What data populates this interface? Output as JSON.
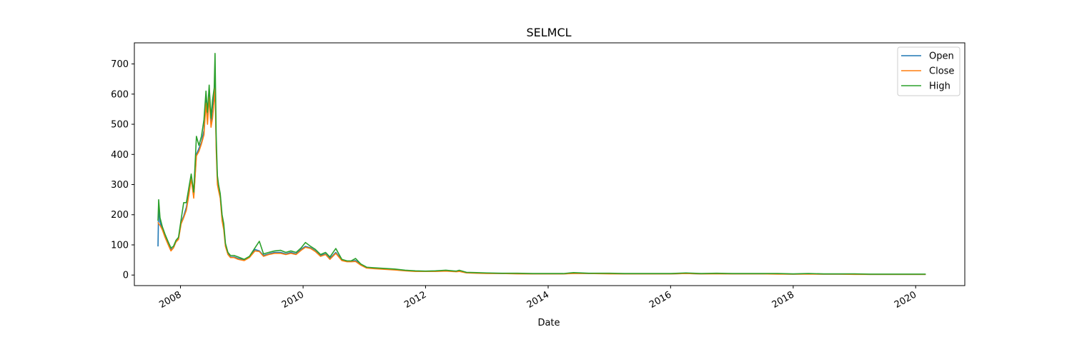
{
  "chart_data": {
    "type": "line",
    "title": "SELMCL",
    "xlabel": "Date",
    "ylabel": "",
    "ylim": [
      -35,
      770
    ],
    "xlim": [
      "2007-04-01",
      "2020-10-20"
    ],
    "yticks": [
      0,
      100,
      200,
      300,
      400,
      500,
      600,
      700
    ],
    "xticks": [
      "2008",
      "2010",
      "2012",
      "2014",
      "2016",
      "2018",
      "2020"
    ],
    "grid": false,
    "legend_position": "top-right",
    "colors": {
      "Open": "#1f77b4",
      "Close": "#ff7f0e",
      "High": "#2ca02c"
    },
    "x": [
      "2007-08-20",
      "2007-08-24",
      "2007-09-01",
      "2007-09-15",
      "2007-10-01",
      "2007-10-20",
      "2007-11-05",
      "2007-11-20",
      "2007-12-05",
      "2007-12-20",
      "2008-01-05",
      "2008-01-20",
      "2008-02-05",
      "2008-02-20",
      "2008-03-05",
      "2008-03-20",
      "2008-04-05",
      "2008-04-20",
      "2008-05-05",
      "2008-05-20",
      "2008-06-01",
      "2008-06-10",
      "2008-06-20",
      "2008-07-01",
      "2008-07-10",
      "2008-07-20",
      "2008-07-25",
      "2008-08-01",
      "2008-08-08",
      "2008-08-15",
      "2008-08-25",
      "2008-09-05",
      "2008-09-15",
      "2008-09-25",
      "2008-10-10",
      "2008-10-25",
      "2008-11-15",
      "2008-12-10",
      "2009-01-15",
      "2009-02-15",
      "2009-03-20",
      "2009-04-15",
      "2009-05-10",
      "2009-06-10",
      "2009-07-15",
      "2009-08-20",
      "2009-09-20",
      "2009-10-20",
      "2009-11-20",
      "2009-12-20",
      "2010-01-15",
      "2010-02-15",
      "2010-03-15",
      "2010-04-15",
      "2010-05-15",
      "2010-06-10",
      "2010-07-15",
      "2010-08-20",
      "2010-09-20",
      "2010-10-15",
      "2010-11-10",
      "2010-12-10",
      "2011-01-15",
      "2011-03-01",
      "2011-05-01",
      "2011-07-01",
      "2011-09-01",
      "2011-11-01",
      "2012-01-01",
      "2012-03-01",
      "2012-05-01",
      "2012-07-01",
      "2012-07-20",
      "2012-09-01",
      "2012-11-01",
      "2013-01-01",
      "2013-04-01",
      "2013-07-01",
      "2013-10-01",
      "2014-01-01",
      "2014-04-01",
      "2014-06-01",
      "2014-09-01",
      "2015-01-01",
      "2015-04-01",
      "2015-07-01",
      "2015-10-01",
      "2016-01-01",
      "2016-04-01",
      "2016-07-01",
      "2016-10-01",
      "2017-01-01",
      "2017-04-01",
      "2017-07-01",
      "2017-10-01",
      "2018-01-01",
      "2018-04-01",
      "2018-07-01",
      "2018-10-01",
      "2019-01-01",
      "2019-04-01",
      "2019-07-01",
      "2019-10-01",
      "2020-01-01",
      "2020-03-01"
    ],
    "series": [
      {
        "name": "Open",
        "values": [
          95,
          235,
          175,
          150,
          130,
          105,
          85,
          90,
          110,
          120,
          175,
          195,
          225,
          275,
          325,
          260,
          400,
          420,
          440,
          480,
          580,
          520,
          610,
          500,
          560,
          600,
          650,
          430,
          320,
          290,
          260,
          190,
          160,
          100,
          70,
          60,
          60,
          55,
          50,
          60,
          85,
          80,
          65,
          70,
          75,
          75,
          70,
          75,
          70,
          85,
          95,
          90,
          80,
          65,
          70,
          55,
          75,
          50,
          45,
          45,
          48,
          35,
          24,
          22,
          20,
          18,
          15,
          13,
          12,
          13,
          14,
          12,
          13,
          8,
          7,
          6,
          5,
          5,
          4,
          4,
          4,
          6,
          5,
          5,
          4,
          4,
          4,
          4,
          5,
          4,
          5,
          4,
          4,
          4,
          4,
          3,
          4,
          3,
          3,
          3,
          2,
          2,
          2,
          2,
          2
        ]
      },
      {
        "name": "Close",
        "values": [
          175,
          170,
          165,
          150,
          125,
          100,
          80,
          90,
          110,
          118,
          170,
          190,
          215,
          265,
          320,
          255,
          395,
          410,
          435,
          465,
          570,
          500,
          590,
          490,
          520,
          580,
          620,
          415,
          300,
          280,
          255,
          180,
          150,
          95,
          68,
          58,
          58,
          52,
          48,
          58,
          80,
          78,
          62,
          68,
          72,
          72,
          68,
          72,
          68,
          82,
          92,
          88,
          78,
          62,
          68,
          52,
          72,
          48,
          44,
          44,
          45,
          33,
          23,
          21,
          19,
          17,
          14,
          12,
          12,
          12,
          13,
          11,
          12,
          7,
          6,
          5,
          5,
          4,
          4,
          4,
          4,
          5,
          5,
          4,
          4,
          4,
          4,
          4,
          5,
          4,
          4,
          4,
          4,
          4,
          3,
          3,
          3,
          3,
          3,
          2,
          2,
          2,
          2,
          2,
          2
        ]
      },
      {
        "name": "High",
        "values": [
          180,
          250,
          190,
          160,
          135,
          110,
          90,
          95,
          115,
          125,
          185,
          240,
          240,
          290,
          335,
          275,
          460,
          430,
          460,
          515,
          610,
          540,
          630,
          520,
          580,
          620,
          735,
          460,
          330,
          300,
          270,
          200,
          170,
          105,
          75,
          65,
          65,
          60,
          52,
          62,
          90,
          112,
          70,
          75,
          80,
          82,
          75,
          80,
          75,
          90,
          108,
          95,
          85,
          68,
          75,
          60,
          88,
          52,
          47,
          47,
          55,
          37,
          26,
          24,
          22,
          20,
          16,
          14,
          13,
          14,
          16,
          13,
          16,
          9,
          8,
          7,
          6,
          6,
          5,
          5,
          5,
          8,
          6,
          6,
          5,
          5,
          5,
          5,
          7,
          5,
          6,
          5,
          5,
          5,
          5,
          4,
          5,
          4,
          4,
          4,
          3,
          3,
          3,
          3,
          3
        ]
      }
    ]
  }
}
